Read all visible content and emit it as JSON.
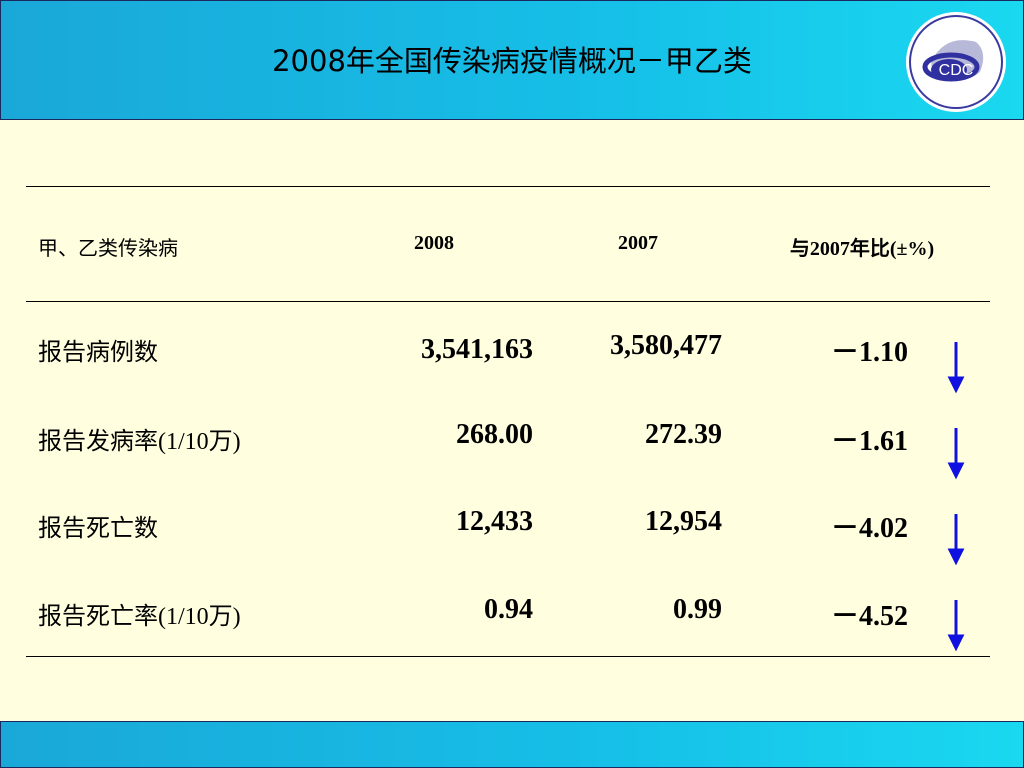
{
  "header": {
    "title": "2008年全国传染病疫情概况－甲乙类",
    "logo": "CDC"
  },
  "table": {
    "columns": [
      "甲、乙类传染病",
      "2008",
      "2007",
      "与2007年比(±%)"
    ],
    "rows": [
      [
        "报告病例数",
        "3,541,163",
        "3,580,477",
        "－1.10"
      ],
      [
        "报告发病率(1/10万)",
        "268.00",
        "272.39",
        "－1.61"
      ],
      [
        "报告死亡数",
        "12,433",
        "12,954",
        "－4.02"
      ],
      [
        "报告死亡率(1/10万)",
        "0.94",
        "0.99",
        "－4.52"
      ]
    ]
  }
}
